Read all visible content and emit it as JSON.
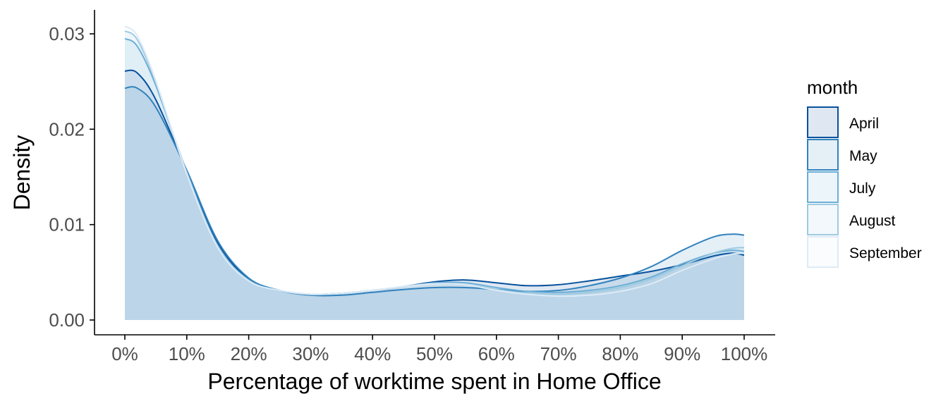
{
  "chart_data": {
    "type": "area",
    "title": "",
    "xlabel": "Percentage of worktime spent in Home Office",
    "ylabel": "Density",
    "xlim": [
      0,
      100
    ],
    "ylim": [
      0,
      0.03
    ],
    "x_ticks": [
      0,
      10,
      20,
      30,
      40,
      50,
      60,
      70,
      80,
      90,
      100
    ],
    "x_tick_labels": [
      "0%",
      "10%",
      "20%",
      "30%",
      "40%",
      "50%",
      "60%",
      "70%",
      "80%",
      "90%",
      "100%"
    ],
    "y_ticks": [
      0,
      0.01,
      0.02,
      0.03
    ],
    "y_tick_labels": [
      "0.00",
      "0.01",
      "0.02",
      "0.03"
    ],
    "grid": false,
    "legend": {
      "title": "month",
      "position": "right"
    },
    "x": [
      0,
      2,
      5,
      10,
      15,
      20,
      25,
      30,
      35,
      40,
      45,
      50,
      55,
      60,
      65,
      70,
      75,
      80,
      85,
      90,
      95,
      98,
      100
    ],
    "series": [
      {
        "name": "April",
        "color": "#08519c",
        "values": [
          0.0261,
          0.0259,
          0.0231,
          0.0156,
          0.0081,
          0.0043,
          0.0031,
          0.0027,
          0.0028,
          0.0031,
          0.0035,
          0.004,
          0.0042,
          0.0039,
          0.0036,
          0.0037,
          0.0041,
          0.0046,
          0.0051,
          0.0058,
          0.0067,
          0.007,
          0.0068
        ]
      },
      {
        "name": "May",
        "color": "#3182bd",
        "values": [
          0.0243,
          0.0243,
          0.0223,
          0.0157,
          0.0083,
          0.0044,
          0.0031,
          0.0026,
          0.0026,
          0.0029,
          0.0032,
          0.0034,
          0.0034,
          0.0032,
          0.003,
          0.0031,
          0.0036,
          0.0044,
          0.0056,
          0.0073,
          0.0087,
          0.009,
          0.0089
        ]
      },
      {
        "name": "July",
        "color": "#6baed6",
        "values": [
          0.0295,
          0.0287,
          0.0246,
          0.0155,
          0.0078,
          0.0042,
          0.0031,
          0.0027,
          0.0028,
          0.0031,
          0.0035,
          0.0039,
          0.0039,
          0.0034,
          0.003,
          0.0029,
          0.0031,
          0.0036,
          0.0045,
          0.0059,
          0.007,
          0.0073,
          0.0072
        ]
      },
      {
        "name": "August",
        "color": "#9ecae1",
        "values": [
          0.0303,
          0.0294,
          0.0249,
          0.0154,
          0.0077,
          0.0041,
          0.0031,
          0.0027,
          0.0028,
          0.0031,
          0.0035,
          0.0038,
          0.0037,
          0.0032,
          0.0028,
          0.0027,
          0.0029,
          0.0034,
          0.0043,
          0.0057,
          0.007,
          0.0075,
          0.0076
        ]
      },
      {
        "name": "September",
        "color": "#deebf7",
        "values": [
          0.0308,
          0.0298,
          0.0251,
          0.0153,
          0.0076,
          0.0041,
          0.0031,
          0.0027,
          0.0028,
          0.0031,
          0.0035,
          0.0038,
          0.0037,
          0.0031,
          0.0027,
          0.0025,
          0.0026,
          0.003,
          0.0038,
          0.0052,
          0.0064,
          0.0069,
          0.007
        ]
      }
    ]
  }
}
